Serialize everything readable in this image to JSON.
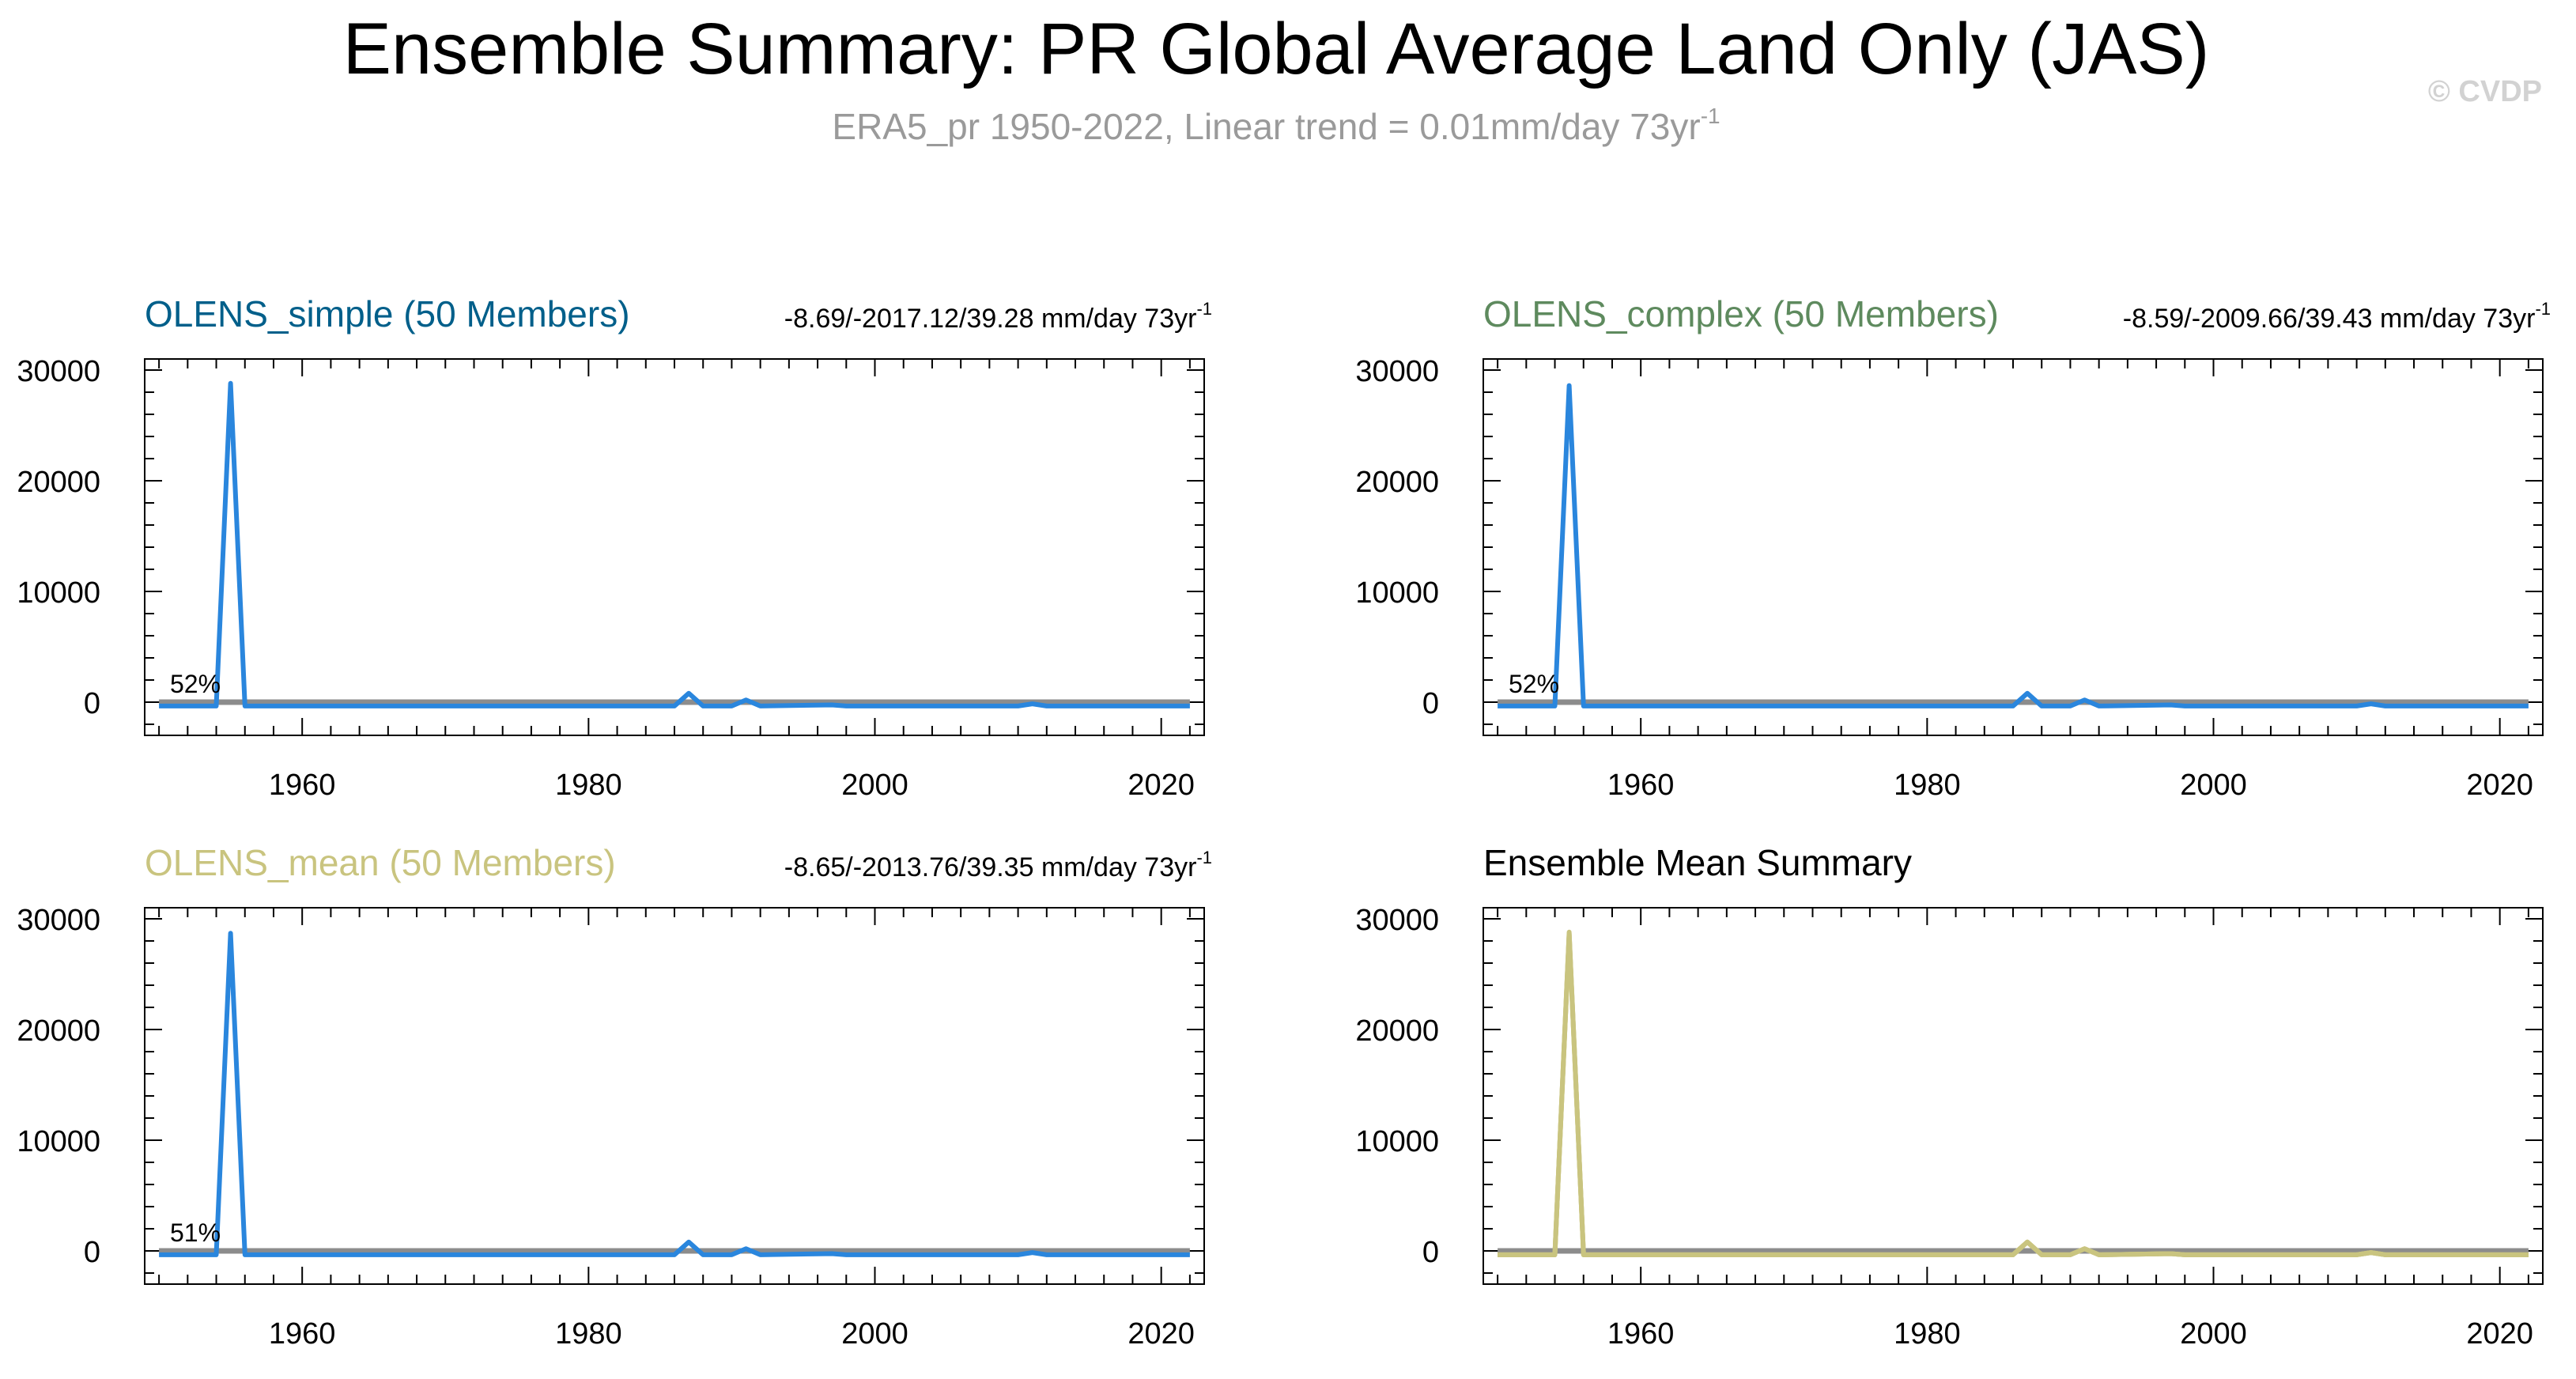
{
  "title": "Ensemble Summary: PR Global Average Land Only (JAS)",
  "subtitle": {
    "text": "ERA5_pr 1950-2022, Linear trend = 0.01mm/day 73yr",
    "superscript": "-1"
  },
  "watermark": "© CVDP",
  "colors": {
    "olens_simple": "#005f8a",
    "olens_complex": "#5e8a5e",
    "olens_mean": "#c9c47f",
    "summary_title": "#000000",
    "line_blue": "#2a86dd",
    "line_olive": "#c9c47f",
    "reference": "#8c8c8c",
    "subtitle": "#9a9a9a",
    "watermark": "#d2d2d2"
  },
  "chart_data": [
    {
      "type": "line",
      "title": "OLENS_simple (50 Members)",
      "title_color_key": "olens_simple",
      "stats": "-8.69/-2017.12/39.28 mm/day 73yr",
      "stats_sup": "-1",
      "percent_label": "52%",
      "x_range": [
        1949,
        2023
      ],
      "ylim": [
        -3000,
        31000
      ],
      "yticks": [
        "30000",
        "20000",
        "10000",
        "0"
      ],
      "ytick_values": [
        30000,
        20000,
        10000,
        0
      ],
      "xticks": [
        "1960",
        "1980",
        "2000",
        "2020"
      ],
      "xtick_values": [
        1960,
        1980,
        2000,
        2020
      ],
      "reference_y": 0,
      "series": [
        {
          "name": "OLENS_simple",
          "color_key": "line_blue",
          "x": [
            1950,
            1954,
            1955,
            1956,
            1986,
            1987,
            1988,
            1990,
            1991,
            1992,
            1997,
            1998,
            2010,
            2011,
            2012,
            2022
          ],
          "values": [
            -350,
            -350,
            28800,
            -350,
            -350,
            800,
            -350,
            -350,
            200,
            -350,
            -250,
            -350,
            -350,
            -150,
            -350,
            -350
          ]
        }
      ]
    },
    {
      "type": "line",
      "title": "OLENS_complex (50 Members)",
      "title_color_key": "olens_complex",
      "stats": "-8.59/-2009.66/39.43 mm/day 73yr",
      "stats_sup": "-1",
      "percent_label": "52%",
      "x_range": [
        1949,
        2023
      ],
      "ylim": [
        -3000,
        31000
      ],
      "yticks": [
        "30000",
        "20000",
        "10000",
        "0"
      ],
      "ytick_values": [
        30000,
        20000,
        10000,
        0
      ],
      "xticks": [
        "1960",
        "1980",
        "2000",
        "2020"
      ],
      "xtick_values": [
        1960,
        1980,
        2000,
        2020
      ],
      "reference_y": 0,
      "series": [
        {
          "name": "OLENS_complex",
          "color_key": "line_blue",
          "x": [
            1950,
            1954,
            1955,
            1956,
            1986,
            1987,
            1988,
            1990,
            1991,
            1992,
            1997,
            1998,
            2010,
            2011,
            2012,
            2022
          ],
          "values": [
            -350,
            -350,
            28600,
            -350,
            -350,
            800,
            -350,
            -350,
            200,
            -350,
            -250,
            -350,
            -350,
            -150,
            -350,
            -350
          ]
        }
      ]
    },
    {
      "type": "line",
      "title": "OLENS_mean (50 Members)",
      "title_color_key": "olens_mean",
      "stats": "-8.65/-2013.76/39.35 mm/day 73yr",
      "stats_sup": "-1",
      "percent_label": "51%",
      "x_range": [
        1949,
        2023
      ],
      "ylim": [
        -3000,
        31000
      ],
      "yticks": [
        "30000",
        "20000",
        "10000",
        "0"
      ],
      "ytick_values": [
        30000,
        20000,
        10000,
        0
      ],
      "xticks": [
        "1960",
        "1980",
        "2000",
        "2020"
      ],
      "xtick_values": [
        1960,
        1980,
        2000,
        2020
      ],
      "reference_y": 0,
      "series": [
        {
          "name": "OLENS_mean",
          "color_key": "line_blue",
          "x": [
            1950,
            1954,
            1955,
            1956,
            1986,
            1987,
            1988,
            1990,
            1991,
            1992,
            1997,
            1998,
            2010,
            2011,
            2012,
            2022
          ],
          "values": [
            -350,
            -350,
            28700,
            -350,
            -350,
            800,
            -350,
            -350,
            200,
            -350,
            -250,
            -350,
            -350,
            -150,
            -350,
            -350
          ]
        }
      ]
    },
    {
      "type": "line",
      "title": "Ensemble Mean Summary",
      "title_color_key": "summary_title",
      "stats": "",
      "stats_sup": "",
      "percent_label": "",
      "x_range": [
        1949,
        2023
      ],
      "ylim": [
        -3000,
        31000
      ],
      "yticks": [
        "30000",
        "20000",
        "10000",
        "0"
      ],
      "ytick_values": [
        30000,
        20000,
        10000,
        0
      ],
      "xticks": [
        "1960",
        "1980",
        "2000",
        "2020"
      ],
      "xtick_values": [
        1960,
        1980,
        2000,
        2020
      ],
      "reference_y": 0,
      "series": [
        {
          "name": "OLENS_simple",
          "color_key": "line_olive",
          "x": [
            1950,
            1954,
            1955,
            1956,
            1986,
            1987,
            1988,
            1990,
            1991,
            1992,
            1997,
            1998,
            2010,
            2011,
            2012,
            2022
          ],
          "values": [
            -350,
            -350,
            28800,
            -350,
            -350,
            800,
            -350,
            -350,
            200,
            -350,
            -250,
            -350,
            -350,
            -150,
            -350,
            -350
          ]
        },
        {
          "name": "OLENS_complex",
          "color_key": "line_olive",
          "x": [
            1950,
            1954,
            1955,
            1956,
            1986,
            1987,
            1988,
            1990,
            1991,
            1992,
            1997,
            1998,
            2010,
            2011,
            2012,
            2022
          ],
          "values": [
            -350,
            -350,
            28600,
            -350,
            -350,
            800,
            -350,
            -350,
            200,
            -350,
            -250,
            -350,
            -350,
            -150,
            -350,
            -350
          ]
        },
        {
          "name": "OLENS_mean",
          "color_key": "line_olive",
          "x": [
            1950,
            1954,
            1955,
            1956,
            1986,
            1987,
            1988,
            1990,
            1991,
            1992,
            1997,
            1998,
            2010,
            2011,
            2012,
            2022
          ],
          "values": [
            -350,
            -350,
            28700,
            -350,
            -350,
            800,
            -350,
            -350,
            200,
            -350,
            -250,
            -350,
            -350,
            -150,
            -350,
            -350
          ]
        }
      ]
    }
  ]
}
